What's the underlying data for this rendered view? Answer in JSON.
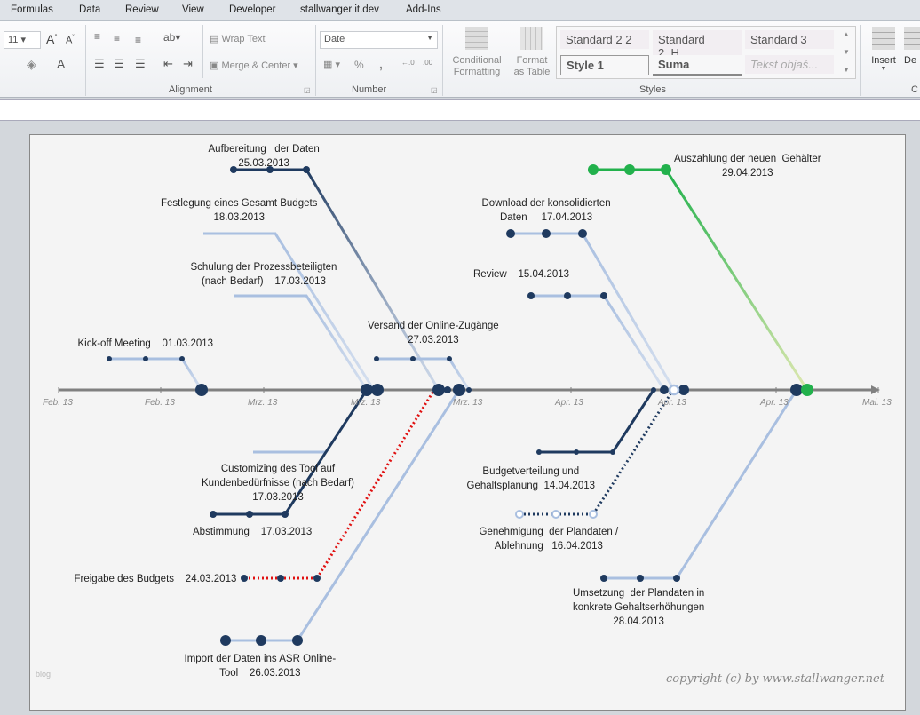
{
  "menu_tabs": [
    "Formulas",
    "Data",
    "Review",
    "View",
    "Developer",
    "stallwanger it.dev",
    "Add-Ins"
  ],
  "ribbon": {
    "font_size": "11",
    "wrap_text": "Wrap Text",
    "merge_center": "Merge & Center",
    "alignment_label": "Alignment",
    "number_format": "Date",
    "percent": "%",
    "comma": ",",
    "number_label": "Number",
    "conditional_formatting": "Conditional\nFormatting",
    "format_as_table": "Format\nas Table",
    "styles": [
      "Standard 2 2",
      "Standard 2_H...",
      "Standard 3",
      "Style 1",
      "Suma",
      "Tekst objaś..."
    ],
    "styles_label": "Styles",
    "insert": "Insert",
    "delete": "De",
    "cells_label": "C"
  },
  "chart": {
    "colors": {
      "dark": "#1f3a5f",
      "light": "#a9bfe0",
      "red": "#e01010",
      "green": "#22b14c",
      "axis": "#808080"
    },
    "axis_ticks": [
      "Feb. 13",
      "Feb. 13",
      "Mrz. 13",
      "Mrz. 13",
      "Mrz. 13",
      "Apr. 13",
      "Apr. 13",
      "Apr. 13",
      "Mai. 13"
    ],
    "milestones": [
      {
        "label": "Kick-off Meeting    01.03.2013",
        "date": "01.03.2013",
        "style": "light"
      },
      {
        "label": "Aufbereitung   der Daten\n25.03.2013",
        "date": "25.03.2013",
        "style": "dark"
      },
      {
        "label": "Festlegung eines Gesamt Budgets\n18.03.2013",
        "date": "18.03.2013",
        "style": "light"
      },
      {
        "label": "Schulung der Prozessbeteiligten\n(nach Bedarf)    17.03.2013",
        "date": "17.03.2013",
        "style": "light"
      },
      {
        "label": "Versand der Online-Zugänge\n27.03.2013",
        "date": "27.03.2013",
        "style": "light"
      },
      {
        "label": "Download der konsolidierten\nDaten     17.04.2013",
        "date": "17.04.2013",
        "style": "light"
      },
      {
        "label": "Review    15.04.2013",
        "date": "15.04.2013",
        "style": "light"
      },
      {
        "label": "Auszahlung der neuen  Gehälter\n29.04.2013",
        "date": "29.04.2013",
        "style": "green"
      },
      {
        "label": "Customizing des Tool auf\nKundenbedürfnisse (nach Bedarf)\n17.03.2013",
        "date": "17.03.2013",
        "style": "light"
      },
      {
        "label": "Abstimmung    17.03.2013",
        "date": "17.03.2013",
        "style": "dark"
      },
      {
        "label": "Freigabe des Budgets    24.03.2013",
        "date": "24.03.2013",
        "style": "red-dotted"
      },
      {
        "label": "Import der Daten ins ASR Online-\nTool    26.03.2013",
        "date": "26.03.2013",
        "style": "light"
      },
      {
        "label": "Budgetverteilung und\nGehaltsplanung  14.04.2013",
        "date": "14.04.2013",
        "style": "dark"
      },
      {
        "label": "Genehmigung  der Plandaten /\nAblehnung   16.04.2013",
        "date": "16.04.2013",
        "style": "dark-dotted"
      },
      {
        "label": "Umsetzung  der Plandaten in\nkonkrete Gehaltserhöhungen\n28.04.2013",
        "date": "28.04.2013",
        "style": "light"
      }
    ],
    "copyright": "copyright (c) by www.stallwanger.net",
    "watermark": "blog"
  }
}
